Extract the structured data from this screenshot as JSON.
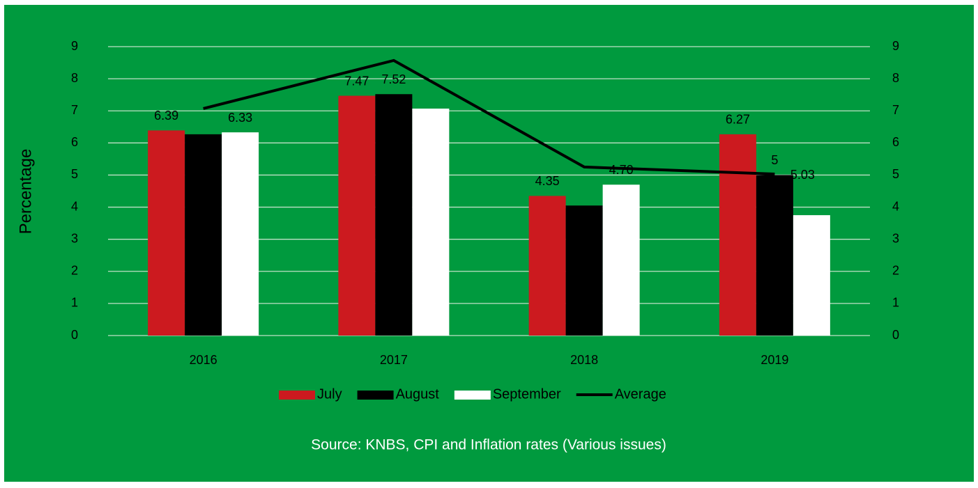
{
  "chart_data": {
    "type": "bar",
    "y_label": "Percentage",
    "source": "Source: KNBS, CPI and Inflation rates (Various issues)",
    "categories": [
      "2016",
      "2017",
      "2018",
      "2019"
    ],
    "series": [
      {
        "name": "July",
        "color": "#cc1a1f",
        "values": [
          6.39,
          7.47,
          4.35,
          6.27
        ],
        "value_labels": [
          "6.39",
          "7.47",
          "4.35",
          "6.27"
        ]
      },
      {
        "name": "August",
        "color": "#000000",
        "values": [
          6.27,
          7.52,
          4.05,
          5
        ],
        "value_labels": [
          null,
          "7.52",
          null,
          "5"
        ]
      },
      {
        "name": "September",
        "color": "#ffffff",
        "values": [
          6.33,
          7.07,
          4.7,
          3.75
        ],
        "value_labels": [
          "6.33",
          null,
          "4.70",
          null
        ]
      },
      {
        "name": "Average",
        "type": "line",
        "axis": "y2",
        "color": "#000000",
        "values": [
          7.07,
          8.57,
          5.25,
          5.03
        ],
        "value_labels": [
          null,
          null,
          null,
          "5.03"
        ]
      }
    ],
    "ylim": [
      0,
      9
    ],
    "yticks": [
      0,
      1,
      2,
      3,
      4,
      5,
      6,
      7,
      8,
      9
    ],
    "y2lim": [
      0,
      9
    ],
    "y2ticks": [
      0,
      1,
      2,
      3,
      4,
      5,
      6,
      7,
      8,
      9
    ],
    "grid": true,
    "legend": "bottom",
    "background": "#009a3e"
  }
}
